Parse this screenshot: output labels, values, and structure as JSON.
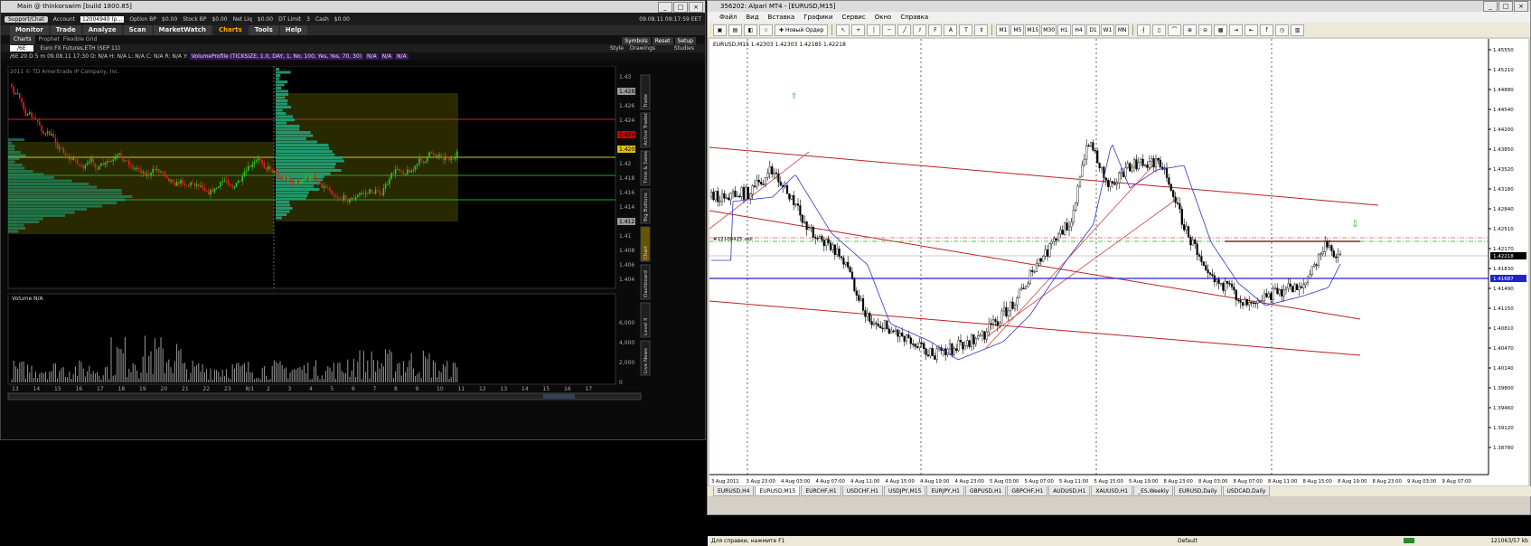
{
  "tos": {
    "title": "Main @ thinkorswim [build 1800.85]",
    "account": {
      "support_label": "Support/Chat",
      "account_label": "Account",
      "account_value": "12004940 (p...",
      "option_bp_label": "Option BP",
      "option_bp": "$0.00",
      "stock_bp_label": "Stock BP",
      "stock_bp": "$0.00",
      "net_liq_label": "Net Liq",
      "net_liq": "$0.00",
      "dt_limit_label": "DT Limit",
      "dt_limit": "3",
      "cash_label": "Cash",
      "cash": "$0.00",
      "datetime": "09.08.11 09:17:59 EET"
    },
    "tabs": [
      "Monitor",
      "Trade",
      "Analyze",
      "Scan",
      "MarketWatch",
      "Charts",
      "Tools",
      "Help"
    ],
    "active_tab": "Charts",
    "subtabs": [
      "Charts",
      "Prophet",
      "Flexible Grid"
    ],
    "right_buttons": [
      "Symbols",
      "Reset",
      "Setup"
    ],
    "chart_toolbar": [
      "Style",
      "Drawings",
      "Studies"
    ],
    "symbol": "/6E",
    "symbol_desc": "Euro FX Futures,ETH (SEP 11)",
    "info": {
      "period": "/6E 20 D 5 m",
      "prefix": "D",
      "date": "09.08.11 17:30",
      "o": "O: N/A",
      "h": "H: N/A",
      "l": "L: N/A",
      "c": "C: N/A",
      "r": "R: N/A",
      "y": "Y:",
      "study": "VolumeProfile (TICKSIZE, 1.0, DAY, 1, No, 100, Yes, Yes, 70, 30)",
      "na1": "N/A",
      "na2": "N/A",
      "na3": "N/A"
    },
    "copyright": "2011 © TD Ameritrade IP Company, Inc.",
    "volume_label": "Volume",
    "volume_na": "N/A",
    "price_labels": [
      "1.43",
      "1.4283",
      "1.426",
      "1.424",
      "1.4241",
      "1.4201",
      "1.42",
      "1.418",
      "1.416",
      "1.414",
      "1.412",
      "1.41",
      "1.408",
      "1.406",
      "1.404"
    ],
    "volume_labels": [
      "6,000",
      "4,000",
      "2,000",
      "0"
    ],
    "x_labels": [
      "13",
      "14",
      "15",
      "16",
      "17",
      "18",
      "19",
      "20",
      "21",
      "22",
      "23",
      "8/1",
      "2",
      "3",
      "4",
      "5",
      "6",
      "7",
      "8",
      "9",
      "10",
      "11",
      "12",
      "13",
      "14",
      "15",
      "16",
      "17"
    ],
    "side_tabs": [
      "Trade",
      "Active Trader",
      "Time & Sales",
      "Big Buttons",
      "Chart",
      "Dashboard",
      "Level II",
      "Live News"
    ],
    "colors": {
      "accent": "#ffa500",
      "up": "#22cc22",
      "down": "#dd2222",
      "profile": "#1fa37a",
      "value_area": "#5a5a00"
    }
  },
  "mt4": {
    "title": "356202: Alpari MT4 - [EURUSD,M15]",
    "menu": [
      "Файл",
      "Вид",
      "Вставка",
      "Графики",
      "Сервис",
      "Окно",
      "Справка"
    ],
    "toolbar": {
      "new_order": "Новый Ордер",
      "timeframes": [
        "M1",
        "M5",
        "M15",
        "M30",
        "H1",
        "H4",
        "D1",
        "W1",
        "MN"
      ]
    },
    "chart_header": "EURUSD,M15 1.42303 1.42303 1.42185 1.42218",
    "order_label": "#12108425 sell",
    "price_labels": [
      "1.45550",
      "1.45210",
      "1.44880",
      "1.44540",
      "1.44200",
      "1.43850",
      "1.43520",
      "1.43180",
      "1.42840",
      "1.42510",
      "1.42170",
      "1.41830",
      "1.41490",
      "1.41150",
      "1.40810",
      "1.40470",
      "1.40140",
      "1.39800",
      "1.39460",
      "1.39120",
      "1.38780"
    ],
    "current_price": "1.42218",
    "blue_price": "1.41687",
    "time_labels": [
      "3 Aug 2011",
      "3 Aug 23:00",
      "4 Aug 03:00",
      "4 Aug 07:00",
      "4 Aug 11:00",
      "4 Aug 15:00",
      "4 Aug 19:00",
      "4 Aug 23:00",
      "5 Aug 03:00",
      "5 Aug 07:00",
      "5 Aug 11:00",
      "5 Aug 15:00",
      "5 Aug 19:00",
      "8 Aug 23:00",
      "8 Aug 03:00",
      "8 Aug 07:00",
      "8 Aug 11:00",
      "8 Aug 15:00",
      "8 Aug 19:00",
      "8 Aug 23:00",
      "9 Aug 03:00",
      "9 Aug 07:00"
    ],
    "tabs": [
      "EURUSD,H4",
      "EURUSD,M15",
      "EURCHF,H1",
      "USDCHF,H1",
      "USDJPY,M15",
      "EURJPY,H1",
      "GBPUSD,H1",
      "GBPCHF,H1",
      "AUDUSD,H1",
      "XAUUSD,H1",
      "_ES,Weekly",
      "EURUSD,Daily",
      "USDCAD,Daily"
    ],
    "active_tab": "EURUSD,M15",
    "status": {
      "help": "Для справки, нажмите F1",
      "profile": "Default",
      "traffic": "121063/57 kb"
    }
  }
}
